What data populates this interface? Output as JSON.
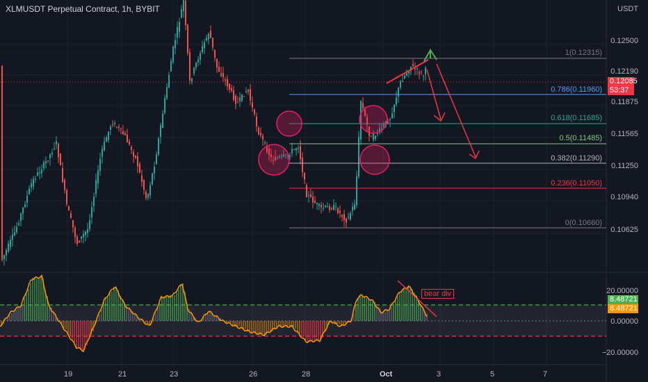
{
  "header": {
    "title": "XLMUSDT Perpetual Contract, 1h, BYBIT"
  },
  "price_axis": {
    "currency": "USDT",
    "ticks": [
      "0.12500",
      "0.12190",
      "0.11875",
      "0.11565",
      "0.11250",
      "0.10940",
      "0.10625"
    ],
    "last_price": "0.12085",
    "countdown": "53:37",
    "last_price_color": "#f23645"
  },
  "fib_levels": [
    {
      "ratio": "1",
      "price": "0.12315",
      "label": "1(0.12315)",
      "color": "#787b86"
    },
    {
      "ratio": "0.786",
      "price": "0.11960",
      "label": "0.786(0.11960)",
      "color": "#5b9cf6"
    },
    {
      "ratio": "0.618",
      "price": "0.11685",
      "label": "0.618(0.11685)",
      "color": "#22ab94"
    },
    {
      "ratio": "0.5",
      "price": "0.11485",
      "label": "0.5(0.11485)",
      "color": "#81c784"
    },
    {
      "ratio": "0.382",
      "price": "0.11290",
      "label": "0.382(0.11290)",
      "color": "#b2b5be"
    },
    {
      "ratio": "0.236",
      "price": "0.11050",
      "label": "0.236(0.11050)",
      "color": "#f23645"
    },
    {
      "ratio": "0",
      "price": "0.10660",
      "label": "0(0.10660)",
      "color": "#787b86"
    }
  ],
  "oscillator": {
    "axis_ticks": [
      "20.00000",
      "0.00000",
      "−20.00000"
    ],
    "value_a": "8.48721",
    "value_b": "8.48721",
    "annotation": "bear div"
  },
  "x_axis": {
    "ticks": [
      "19",
      "21",
      "23",
      "26",
      "28",
      "Oct",
      "3",
      "5",
      "7"
    ]
  },
  "colors": {
    "up": "#26a69a",
    "down": "#ef5350",
    "background": "#131722",
    "arrow": "#f23645",
    "osc_line": "#ff9800"
  }
}
